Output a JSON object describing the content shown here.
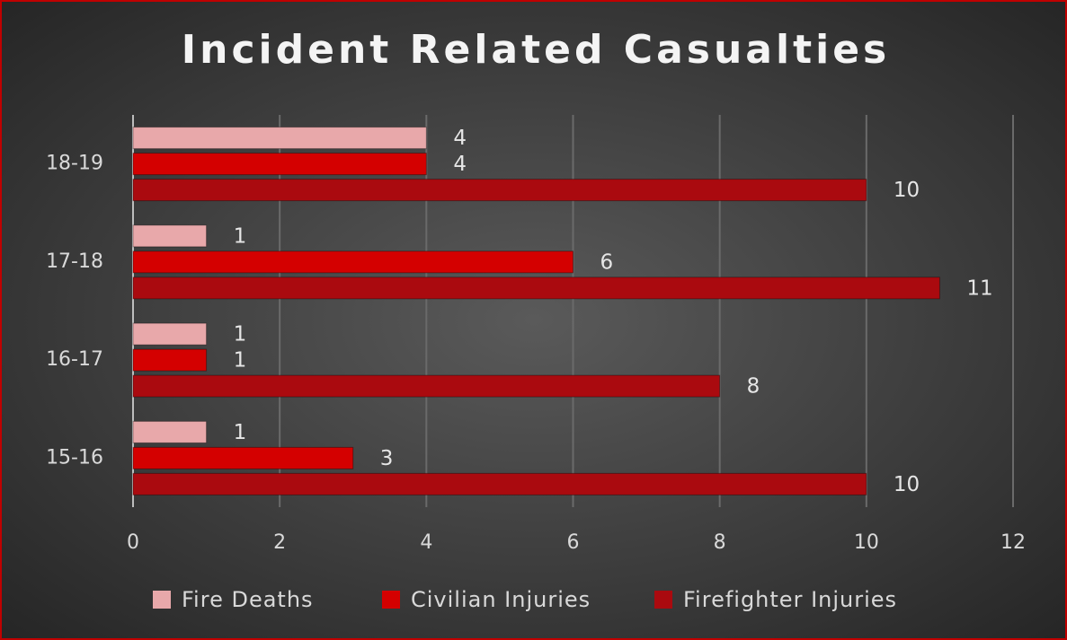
{
  "chart_data": {
    "type": "barh",
    "title": "Incident Related Casualties",
    "categories": [
      "15-16",
      "16-17",
      "17-18",
      "18-19"
    ],
    "series": [
      {
        "name": "Fire Deaths",
        "color": "#e8a8aa",
        "values": [
          1,
          1,
          1,
          4
        ]
      },
      {
        "name": "Civilian Injuries",
        "color": "#d40000",
        "values": [
          3,
          1,
          6,
          4
        ]
      },
      {
        "name": "Firefighter Injuries",
        "color": "#aa0a0f",
        "values": [
          10,
          8,
          11,
          10
        ]
      }
    ],
    "xlim": [
      0,
      12
    ],
    "xticks": [
      0,
      2,
      4,
      6,
      8,
      10,
      12
    ],
    "grid": true,
    "legend": "bottom"
  }
}
